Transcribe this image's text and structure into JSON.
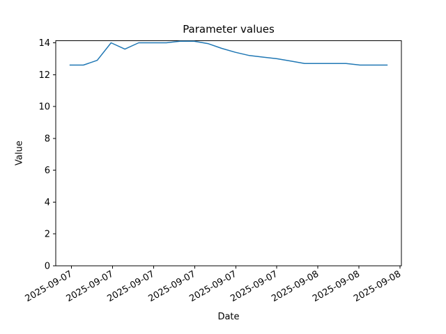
{
  "figure": {
    "background": "#ffffff",
    "text_color": "#000000",
    "spine_color": "#000000"
  },
  "chart_data": {
    "type": "line",
    "title": "Parameter values",
    "xlabel": "Date",
    "ylabel": "Value",
    "grid": false,
    "legend": false,
    "background": "#ffffff",
    "xlim": [
      -1,
      24
    ],
    "ylim": [
      0,
      14.13
    ],
    "y_ticks": [
      0,
      2,
      4,
      6,
      8,
      10,
      12,
      14
    ],
    "x_ticks": [
      {
        "value": 0.14,
        "label": "2025-09-07"
      },
      {
        "value": 3.11,
        "label": "2025-09-07"
      },
      {
        "value": 6.08,
        "label": "2025-09-07"
      },
      {
        "value": 9.05,
        "label": "2025-09-07"
      },
      {
        "value": 12.02,
        "label": "2025-09-07"
      },
      {
        "value": 14.99,
        "label": "2025-09-07"
      },
      {
        "value": 17.96,
        "label": "2025-09-08"
      },
      {
        "value": 20.93,
        "label": "2025-09-08"
      },
      {
        "value": 23.9,
        "label": "2025-09-08"
      }
    ],
    "x_tick_rotation_deg": 30,
    "series": [
      {
        "name": "parameter-values",
        "color": "#1f77b4",
        "x": [
          0,
          1,
          2,
          3,
          4,
          5,
          6,
          7,
          8,
          9,
          10,
          11,
          12,
          13,
          14,
          15,
          16,
          17,
          18,
          19,
          20,
          21,
          22,
          23
        ],
        "values": [
          12.6,
          12.6,
          12.9,
          14.0,
          13.6,
          14.0,
          14.0,
          14.0,
          14.1,
          14.1,
          13.95,
          13.65,
          13.4,
          13.2,
          13.1,
          13.0,
          12.85,
          12.7,
          12.7,
          12.7,
          12.7,
          12.6,
          12.6,
          12.6
        ]
      }
    ]
  }
}
